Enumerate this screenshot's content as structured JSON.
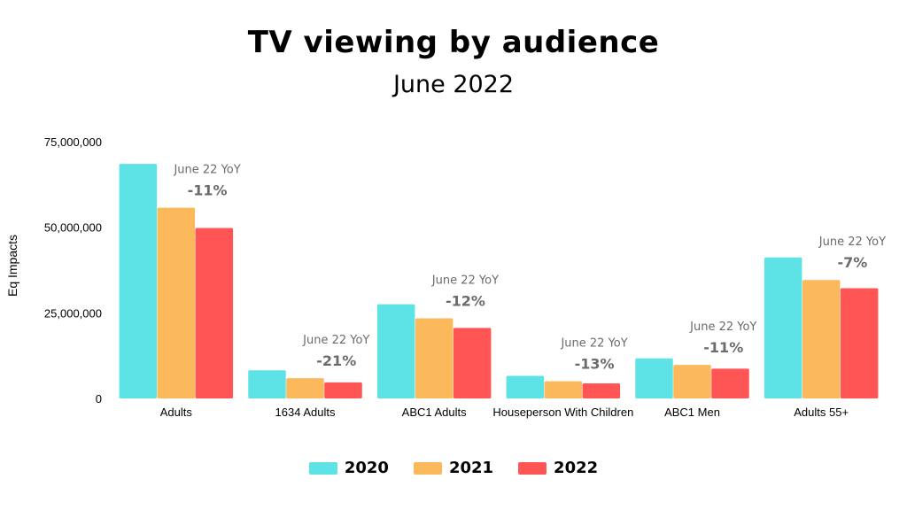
{
  "title": "TV viewing by audience",
  "subtitle": "June 2022",
  "chart_data": {
    "type": "bar",
    "ylabel": "Eq Impacts",
    "ylim": [
      0,
      75000000
    ],
    "yticks": [
      0,
      25000000,
      50000000,
      75000000
    ],
    "ytick_labels": [
      "0",
      "25,000,000",
      "50,000,000",
      "75,000,000"
    ],
    "grid": false,
    "legend_position": "bottom-center",
    "categories": [
      "Adults",
      "1634 Adults",
      "ABC1 Adults",
      "Houseperson With Children",
      "ABC1 Men",
      "Adults 55+"
    ],
    "series": [
      {
        "name": "2020",
        "color": "#5de3e6",
        "values": [
          68500000,
          8200000,
          27500000,
          6600000,
          11700000,
          41200000
        ]
      },
      {
        "name": "2021",
        "color": "#fbb95b",
        "values": [
          55700000,
          5900000,
          23400000,
          5000000,
          9800000,
          34600000
        ]
      },
      {
        "name": "2022",
        "color": "#ff5555",
        "values": [
          49800000,
          4700000,
          20600000,
          4400000,
          8700000,
          32200000
        ]
      }
    ],
    "annotations": [
      {
        "category": "Adults",
        "label": "June 22 YoY",
        "value": "-11%"
      },
      {
        "category": "1634 Adults",
        "label": "June 22 YoY",
        "value": "-21%"
      },
      {
        "category": "ABC1 Adults",
        "label": "June 22 YoY",
        "value": "-12%"
      },
      {
        "category": "Houseperson With Children",
        "label": "June 22 YoY",
        "value": "-13%"
      },
      {
        "category": "ABC1 Men",
        "label": "June 22 YoY",
        "value": "-11%"
      },
      {
        "category": "Adults 55+",
        "label": "June 22 YoY",
        "value": "-7%"
      }
    ]
  }
}
